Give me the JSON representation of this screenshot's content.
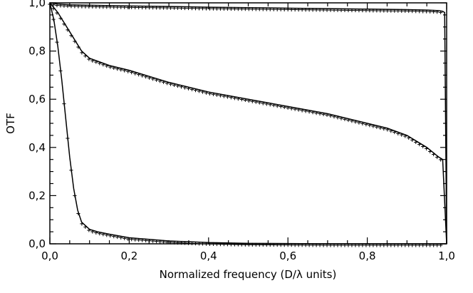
{
  "chart_data": {
    "type": "line",
    "title": "",
    "xlabel": "Normalized frequency (D/λ units)",
    "ylabel": "OTF",
    "xlim": [
      0.0,
      1.0
    ],
    "ylim": [
      0.0,
      1.0
    ],
    "x_ticks": [
      "0,0",
      "0,2",
      "0,4",
      "0,6",
      "0,8",
      "1,0"
    ],
    "y_ticks": [
      "0,0",
      "0,2",
      "0,4",
      "0,6",
      "0,8",
      "1,0"
    ],
    "grid": false,
    "legend": "none",
    "series": [
      {
        "style": "solid-line-with-plus-markers",
        "x": [
          0.0,
          0.02,
          0.05,
          0.1,
          0.2,
          0.3,
          0.4,
          0.5,
          0.6,
          0.7,
          0.8,
          0.9,
          0.95,
          0.98,
          0.99,
          0.995,
          1.0
        ],
        "y": [
          1.0,
          0.995,
          0.992,
          0.99,
          0.987,
          0.985,
          0.982,
          0.98,
          0.978,
          0.976,
          0.974,
          0.972,
          0.97,
          0.968,
          0.965,
          0.96,
          0.0
        ]
      },
      {
        "style": "solid-line-with-plus-markers",
        "x": [
          0.0,
          0.02,
          0.05,
          0.08,
          0.1,
          0.15,
          0.2,
          0.3,
          0.4,
          0.5,
          0.6,
          0.7,
          0.8,
          0.85,
          0.9,
          0.95,
          0.98,
          0.99,
          1.0
        ],
        "y": [
          1.0,
          0.96,
          0.88,
          0.8,
          0.77,
          0.74,
          0.72,
          0.67,
          0.63,
          0.6,
          0.57,
          0.54,
          0.5,
          0.48,
          0.45,
          0.4,
          0.36,
          0.35,
          0.0
        ]
      },
      {
        "style": "solid-line-with-plus-markers",
        "x": [
          0.0,
          0.01,
          0.02,
          0.03,
          0.04,
          0.05,
          0.06,
          0.07,
          0.08,
          0.1,
          0.12,
          0.15,
          0.2,
          0.3,
          0.4,
          0.5,
          0.6,
          0.7,
          0.8,
          0.9,
          1.0
        ],
        "y": [
          1.0,
          0.93,
          0.82,
          0.68,
          0.52,
          0.36,
          0.23,
          0.14,
          0.09,
          0.06,
          0.05,
          0.04,
          0.025,
          0.012,
          0.005,
          0.002,
          0.001,
          0.0,
          0.0,
          0.0,
          0.0
        ]
      }
    ]
  }
}
